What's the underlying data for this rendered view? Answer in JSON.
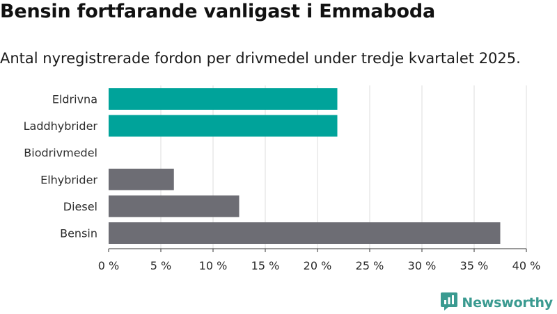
{
  "title": "Bensin fortfarande vanligast i Emmaboda",
  "subtitle": "Antal nyregistrerade fordon per drivmedel under tredje kvartalet 2025.",
  "brand": {
    "name": "Newsworthy",
    "icon": "newsworthy-logo-icon",
    "color": "#3a9a90"
  },
  "chart_data": {
    "type": "bar",
    "orientation": "horizontal",
    "categories": [
      "Eldrivna",
      "Laddhybrider",
      "Biodrivmedel",
      "Elhybrider",
      "Diesel",
      "Bensin"
    ],
    "values": [
      21.9,
      21.9,
      0,
      6.25,
      12.5,
      37.5
    ],
    "colors": [
      "#00a39a",
      "#00a39a",
      "#00a39a",
      "#6d6d74",
      "#6d6d74",
      "#6d6d74"
    ],
    "xlim": [
      0,
      40
    ],
    "ticks": [
      0,
      5,
      10,
      15,
      20,
      25,
      30,
      35,
      40
    ],
    "tick_labels": [
      "0 %",
      "5 %",
      "10 %",
      "15 %",
      "20 %",
      "25 %",
      "30 %",
      "35 %",
      "40 %"
    ],
    "grid": true
  }
}
